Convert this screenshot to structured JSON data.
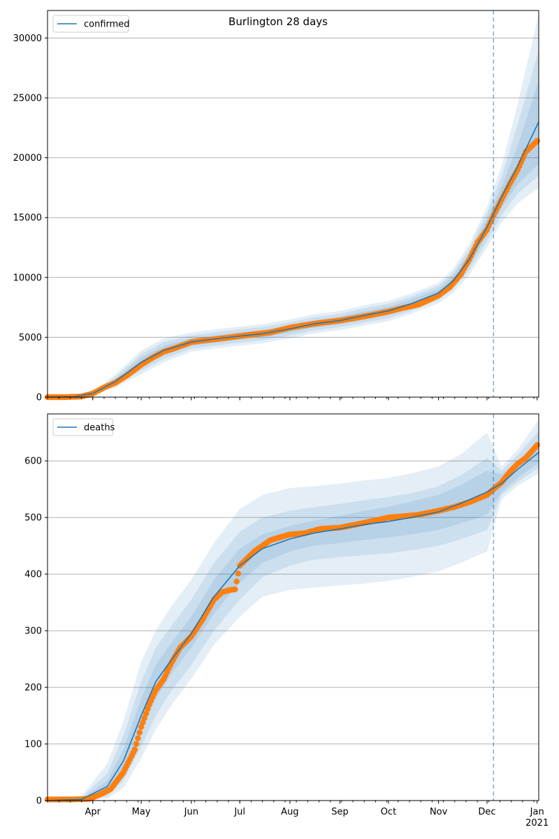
{
  "figure": {
    "title": "Burlington 28 days"
  },
  "colors": {
    "model": "#1f77b4",
    "band": "#1f77b4",
    "observed": "#ff7f0e",
    "grid": "#b0b0b0",
    "axis": "#000000"
  },
  "x_axis": {
    "type": "date",
    "range": [
      "2020-03-04",
      "2021-01-02"
    ],
    "month_ticks": [
      {
        "date": "2020-04-01",
        "label": "Apr"
      },
      {
        "date": "2020-05-01",
        "label": "May"
      },
      {
        "date": "2020-06-01",
        "label": "Jun"
      },
      {
        "date": "2020-07-01",
        "label": "Jul"
      },
      {
        "date": "2020-08-01",
        "label": "Aug"
      },
      {
        "date": "2020-09-01",
        "label": "Sep"
      },
      {
        "date": "2020-10-01",
        "label": "Oct"
      },
      {
        "date": "2020-11-01",
        "label": "Nov"
      },
      {
        "date": "2020-12-01",
        "label": "Dec"
      },
      {
        "date": "2021-01-01",
        "label": "Jan"
      }
    ],
    "year_label": "2021",
    "forecast_start": "2020-12-05"
  },
  "chart_data": [
    {
      "type": "line",
      "legend": "confirmed",
      "legend_position": "upper-left",
      "grid": "y",
      "ylim": [
        0,
        32300
      ],
      "yticks": [
        0,
        5000,
        10000,
        15000,
        20000,
        25000,
        30000
      ],
      "model_series": {
        "name": "confirmed",
        "x": [
          "2020-03-04",
          "2020-03-20",
          "2020-04-01",
          "2020-04-15",
          "2020-05-01",
          "2020-05-15",
          "2020-06-01",
          "2020-06-15",
          "2020-07-01",
          "2020-07-15",
          "2020-08-01",
          "2020-08-15",
          "2020-09-01",
          "2020-09-15",
          "2020-10-01",
          "2020-10-15",
          "2020-11-01",
          "2020-11-10",
          "2020-11-20",
          "2020-12-01",
          "2020-12-10",
          "2020-12-20",
          "2021-01-02"
        ],
        "y": [
          0,
          30,
          300,
          1300,
          2900,
          3900,
          4600,
          4850,
          5100,
          5300,
          5700,
          6100,
          6400,
          6800,
          7200,
          7800,
          8700,
          9700,
          11500,
          14200,
          16700,
          19300,
          23000
        ],
        "bands": [
          {
            "lower": [
              0,
              20,
              250,
              1100,
              2500,
              3500,
              4300,
              4550,
              4800,
              5000,
              5400,
              5800,
              6100,
              6450,
              6850,
              7450,
              8350,
              9300,
              11000,
              13500,
              15800,
              17800,
              19500
            ],
            "upper": [
              0,
              40,
              350,
              1500,
              3300,
              4300,
              4900,
              5150,
              5400,
              5600,
              6000,
              6400,
              6700,
              7150,
              7550,
              8150,
              9050,
              10100,
              12000,
              14900,
              17600,
              21000,
              26500
            ]
          },
          {
            "lower": [
              0,
              15,
              200,
              950,
              2200,
              3200,
              4050,
              4300,
              4550,
              4750,
              5150,
              5550,
              5850,
              6200,
              6600,
              7200,
              8100,
              9000,
              10600,
              13000,
              15200,
              17000,
              18500
            ],
            "upper": [
              0,
              45,
              400,
              1700,
              3600,
              4600,
              5150,
              5400,
              5650,
              5850,
              6250,
              6650,
              6950,
              7400,
              7800,
              8400,
              9300,
              10400,
              12400,
              15400,
              18400,
              22800,
              29000
            ]
          },
          {
            "lower": [
              0,
              10,
              150,
              800,
              1900,
              2900,
              3800,
              4050,
              4300,
              4500,
              4900,
              5300,
              5600,
              5950,
              6350,
              6950,
              7850,
              8700,
              10200,
              12500,
              14600,
              16200,
              17500
            ],
            "upper": [
              0,
              55,
              450,
              1900,
              3900,
              4900,
              5400,
              5650,
              5900,
              6100,
              6500,
              6900,
              7200,
              7650,
              8050,
              8650,
              9550,
              10700,
              12800,
              15900,
              19300,
              24500,
              32000
            ]
          }
        ]
      },
      "observed_series": {
        "x": [
          "2020-03-04",
          "2020-03-15",
          "2020-03-25",
          "2020-04-01",
          "2020-04-08",
          "2020-04-15",
          "2020-04-22",
          "2020-05-01",
          "2020-05-08",
          "2020-05-15",
          "2020-05-22",
          "2020-06-01",
          "2020-06-10",
          "2020-06-20",
          "2020-07-01",
          "2020-07-10",
          "2020-07-20",
          "2020-08-01",
          "2020-08-10",
          "2020-08-20",
          "2020-09-01",
          "2020-09-10",
          "2020-09-20",
          "2020-10-01",
          "2020-10-10",
          "2020-10-20",
          "2020-11-01",
          "2020-11-08",
          "2020-11-15",
          "2020-11-20",
          "2020-11-25",
          "2020-12-01",
          "2020-12-05",
          "2020-12-10",
          "2020-12-15",
          "2020-12-20",
          "2020-12-25",
          "2021-01-01"
        ],
        "y": [
          0,
          0,
          50,
          300,
          800,
          1200,
          1800,
          2700,
          3300,
          3800,
          4100,
          4600,
          4750,
          4900,
          5100,
          5250,
          5400,
          5800,
          6000,
          6200,
          6400,
          6600,
          6850,
          7150,
          7450,
          7750,
          8500,
          9200,
          10300,
          11500,
          12900,
          14000,
          15200,
          16500,
          17800,
          19000,
          20500,
          21400
        ]
      }
    },
    {
      "type": "line",
      "legend": "deaths",
      "legend_position": "upper-left",
      "grid": "y",
      "ylim": [
        0,
        683
      ],
      "yticks": [
        0,
        100,
        200,
        300,
        400,
        500,
        600
      ],
      "model_series": {
        "name": "deaths",
        "x": [
          "2020-03-04",
          "2020-03-25",
          "2020-04-10",
          "2020-04-20",
          "2020-05-01",
          "2020-05-10",
          "2020-05-20",
          "2020-06-01",
          "2020-06-15",
          "2020-07-01",
          "2020-07-15",
          "2020-08-01",
          "2020-08-15",
          "2020-09-01",
          "2020-09-15",
          "2020-10-01",
          "2020-10-15",
          "2020-11-01",
          "2020-11-15",
          "2020-12-01",
          "2020-12-10",
          "2020-12-20",
          "2021-01-02"
        ],
        "y": [
          0,
          2,
          25,
          70,
          150,
          210,
          250,
          295,
          360,
          415,
          445,
          462,
          472,
          480,
          487,
          493,
          500,
          510,
          525,
          545,
          560,
          585,
          615
        ],
        "bands": [
          {
            "lower": [
              0,
              1,
              15,
              50,
              120,
              180,
              225,
              270,
              330,
              385,
              420,
              440,
              450,
              455,
              460,
              465,
              470,
              478,
              490,
              505,
              545,
              570,
              597
            ],
            "upper": [
              0,
              3,
              35,
              90,
              180,
              240,
              280,
              325,
              390,
              445,
              470,
              485,
              494,
              503,
              511,
              519,
              528,
              540,
              558,
              583,
              576,
              600,
              634
            ]
          },
          {
            "lower": [
              0,
              0,
              8,
              35,
              95,
              150,
              195,
              240,
              300,
              355,
              395,
              415,
              425,
              430,
              433,
              437,
              442,
              450,
              462,
              478,
              540,
              563,
              588
            ],
            "upper": [
              0,
              5,
              48,
              115,
              210,
              270,
              310,
              355,
              420,
              475,
              500,
              512,
              518,
              524,
              530,
              536,
              543,
              555,
              575,
              605,
              583,
              610,
              653
            ]
          },
          {
            "lower": [
              0,
              0,
              4,
              22,
              75,
              125,
              170,
              215,
              275,
              325,
              360,
              372,
              376,
              380,
              383,
              388,
              395,
              405,
              420,
              440,
              532,
              556,
              578
            ],
            "upper": [
              0,
              8,
              65,
              140,
              245,
              300,
              345,
              390,
              455,
              515,
              540,
              552,
              555,
              560,
              565,
              570,
              578,
              590,
              612,
              650,
              590,
              620,
              673
            ]
          }
        ]
      },
      "observed_series": {
        "x": [
          "2020-03-04",
          "2020-03-20",
          "2020-03-30",
          "2020-04-05",
          "2020-04-12",
          "2020-04-20",
          "2020-04-27",
          "2020-05-01",
          "2020-05-06",
          "2020-05-10",
          "2020-05-15",
          "2020-05-20",
          "2020-05-25",
          "2020-06-01",
          "2020-06-08",
          "2020-06-15",
          "2020-06-20",
          "2020-06-25",
          "2020-06-28",
          "2020-07-01",
          "2020-07-10",
          "2020-07-20",
          "2020-08-01",
          "2020-08-10",
          "2020-08-20",
          "2020-09-01",
          "2020-09-10",
          "2020-09-20",
          "2020-10-01",
          "2020-10-10",
          "2020-10-20",
          "2020-11-01",
          "2020-11-10",
          "2020-11-20",
          "2020-12-01",
          "2020-12-05",
          "2020-12-10",
          "2020-12-15",
          "2020-12-20",
          "2020-12-25",
          "2021-01-01"
        ],
        "y": [
          2,
          2,
          3,
          10,
          20,
          50,
          90,
          130,
          170,
          195,
          215,
          245,
          270,
          290,
          320,
          355,
          368,
          372,
          373,
          415,
          440,
          460,
          470,
          472,
          480,
          482,
          487,
          493,
          500,
          502,
          505,
          512,
          518,
          527,
          540,
          550,
          562,
          580,
          595,
          605,
          628
        ]
      }
    }
  ]
}
